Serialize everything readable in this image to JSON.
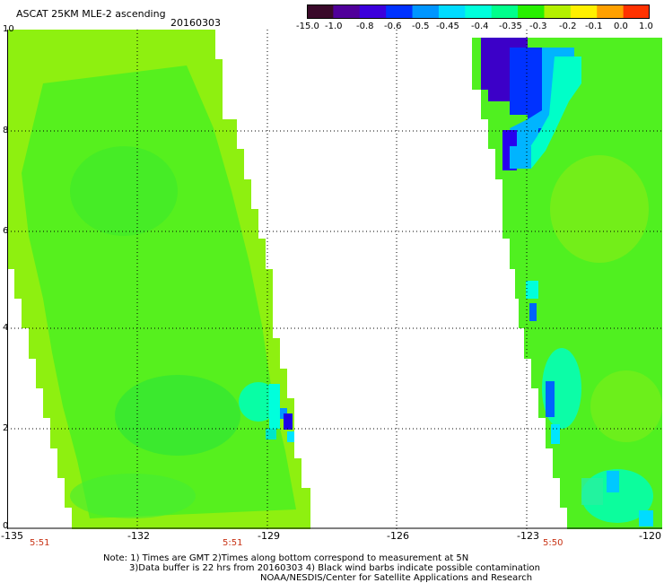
{
  "header": {
    "title": "ASCAT 25KM MLE-2 ascending",
    "date": "20160303"
  },
  "colorbar": {
    "labels": [
      "-15.0",
      "-1.0",
      "-0.8",
      "-0.6",
      "-0.5",
      "-0.45",
      "-0.4",
      "-0.35",
      "-0.3",
      "-0.2",
      "-0.1",
      "0.0",
      "1.0"
    ],
    "colors": [
      "#3a0a2a",
      "#50009a",
      "#3c00dc",
      "#0032ff",
      "#0096ff",
      "#00dcff",
      "#00ffdc",
      "#00ff8c",
      "#28f000",
      "#b4f000",
      "#fff000",
      "#ffa000",
      "#ff3200"
    ]
  },
  "map": {
    "y_ticks": [
      "10",
      "8",
      "6",
      "4",
      "2",
      "0"
    ],
    "x_ticks": [
      "-135",
      "-132",
      "-129",
      "-126",
      "-123",
      "-120"
    ],
    "pass_times": [
      "5:51",
      "5:51",
      "5:50"
    ],
    "colors": {
      "background_green": "#8ef010",
      "fill_green": "#50f020",
      "bright_green": "#28e43c",
      "cyan": "#00ffdc",
      "light_blue": "#00b4ff",
      "blue": "#0032ff",
      "deep_blue": "#2800ee",
      "violet": "#3c00c8"
    }
  },
  "footer": {
    "note_line1": "Note: 1) Times are GMT 2)Times along bottom correspond to measurement at 5N",
    "note_line2": "3)Data buffer is 22 hrs from 20160303 4) Black wind barbs indicate possible contamination",
    "credit": "NOAA/NESDIS/Center for Satellite Applications and Research"
  }
}
